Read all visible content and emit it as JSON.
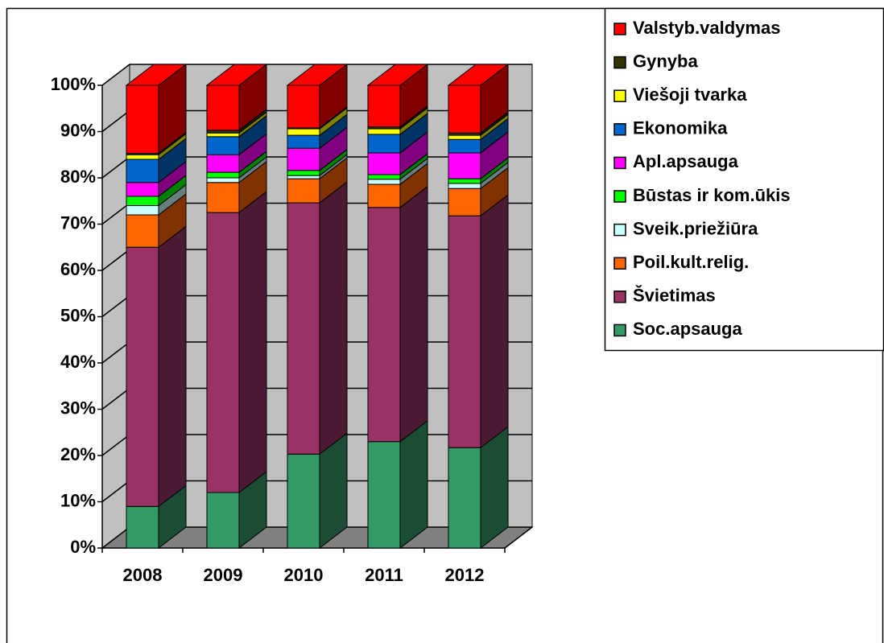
{
  "chart_data": {
    "type": "bar3d_stacked",
    "categories": [
      "2008",
      "2009",
      "2010",
      "2011",
      "2012"
    ],
    "series": [
      {
        "name": "Soc.apsauga",
        "color": "#339966",
        "values": [
          9,
          12,
          20.3,
          23,
          21.7
        ]
      },
      {
        "name": "Švietimas",
        "color": "#993366",
        "values": [
          56,
          60.5,
          54.3,
          50.6,
          50.1
        ]
      },
      {
        "name": "Poil.kult.relig.",
        "color": "#ff6600",
        "values": [
          7,
          6.5,
          5.2,
          5,
          5.9
        ]
      },
      {
        "name": "Sveik.priežiūra",
        "color": "#ccffff",
        "values": [
          2,
          1,
          0.7,
          1.1,
          1.1
        ]
      },
      {
        "name": "Būstas ir kom.ūkis",
        "color": "#00ff00",
        "values": [
          2,
          1.2,
          1.1,
          1,
          1
        ]
      },
      {
        "name": "Apl.apsauga",
        "color": "#ff00ff",
        "values": [
          3,
          3.8,
          4.8,
          4.7,
          5.6
        ]
      },
      {
        "name": "Ekonomika",
        "color": "#0066cc",
        "values": [
          5,
          3.9,
          2.8,
          4,
          2.9
        ]
      },
      {
        "name": "Viešoji tvarka",
        "color": "#ffff00",
        "values": [
          1,
          0.8,
          1.4,
          1.2,
          0.9
        ]
      },
      {
        "name": "Gynyba",
        "color": "#333300",
        "values": [
          0.3,
          0.6,
          0.2,
          0.4,
          0.5
        ]
      },
      {
        "name": "Valstyb.valdymas",
        "color": "#ff0000",
        "values": [
          14.7,
          9.7,
          9.2,
          9,
          10.3
        ]
      }
    ],
    "ylim": [
      0,
      100
    ],
    "yticks": [
      {
        "value": 0,
        "label": "0%"
      },
      {
        "value": 10,
        "label": "10%"
      },
      {
        "value": 20,
        "label": "20%"
      },
      {
        "value": 30,
        "label": "30%"
      },
      {
        "value": 40,
        "label": "40%"
      },
      {
        "value": 50,
        "label": "50%"
      },
      {
        "value": 60,
        "label": "60%"
      },
      {
        "value": 70,
        "label": "70%"
      },
      {
        "value": 80,
        "label": "80%"
      },
      {
        "value": 90,
        "label": "90%"
      },
      {
        "value": 100,
        "label": "100%"
      }
    ],
    "grid": true,
    "legend": "right"
  }
}
